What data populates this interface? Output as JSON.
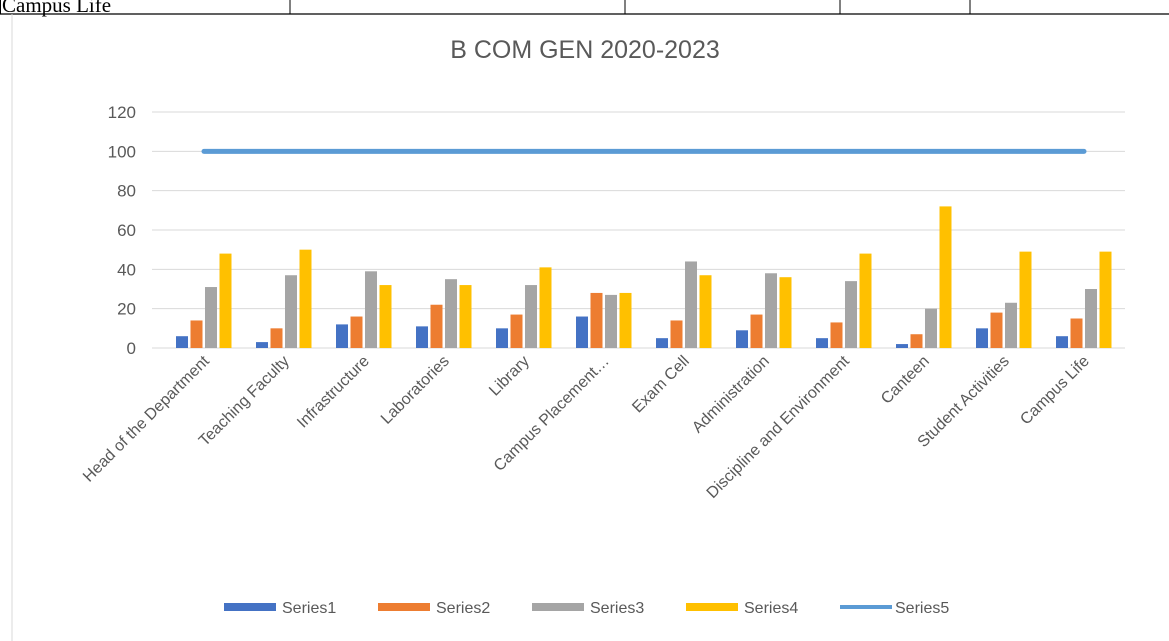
{
  "table_fragment": {
    "cells": [
      "Campus Life"
    ]
  },
  "chart_data": {
    "type": "bar",
    "title": "B COM GEN 2020-2023",
    "categories": [
      "Head of the Department",
      "Teaching Faculty",
      "Infrastructure",
      "Laboratories",
      "Library",
      "Campus Placement…",
      "Exam Cell",
      "Administration",
      "Discipline and Environment",
      "Canteen",
      "Student Activities",
      "Campus Life"
    ],
    "series": [
      {
        "name": "Series1",
        "color": "#4472c4",
        "values": [
          6,
          3,
          12,
          11,
          10,
          16,
          5,
          9,
          5,
          2,
          10,
          6
        ]
      },
      {
        "name": "Series2",
        "color": "#ed7d31",
        "values": [
          14,
          10,
          16,
          22,
          17,
          28,
          14,
          17,
          13,
          7,
          18,
          15
        ]
      },
      {
        "name": "Series3",
        "color": "#a5a5a5",
        "values": [
          31,
          37,
          39,
          35,
          32,
          27,
          44,
          38,
          34,
          20,
          23,
          30
        ]
      },
      {
        "name": "Series4",
        "color": "#ffc000",
        "values": [
          48,
          50,
          32,
          32,
          41,
          28,
          37,
          36,
          48,
          72,
          49,
          49
        ]
      },
      {
        "name": "Series5",
        "color": "#5b9bd5",
        "type": "line",
        "values": [
          100,
          100,
          100,
          100,
          100,
          100,
          100,
          100,
          100,
          100,
          100,
          100
        ]
      }
    ],
    "ylim": [
      0,
      120
    ],
    "yticks": [
      0,
      20,
      40,
      60,
      80,
      100,
      120
    ],
    "grid": true,
    "legend": "bottom"
  }
}
